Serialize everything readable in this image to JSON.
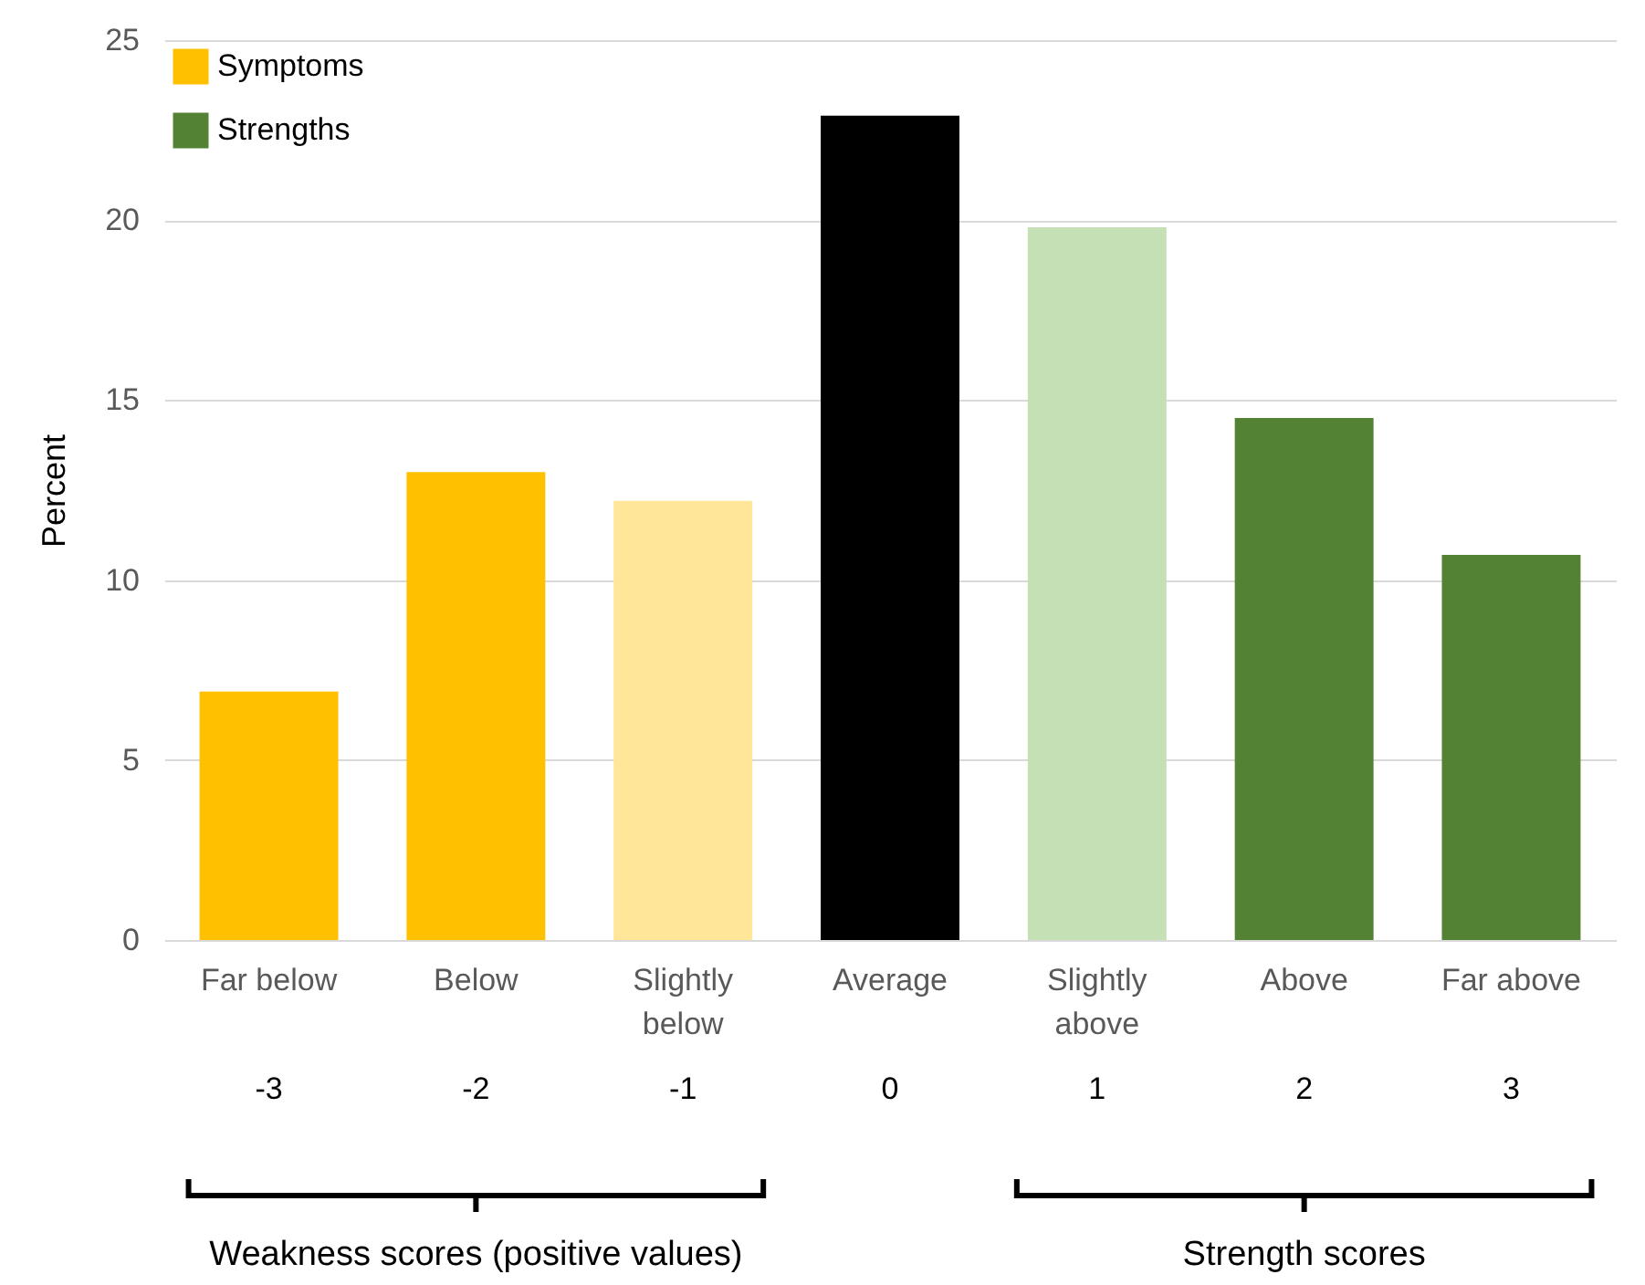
{
  "chart_data": {
    "type": "bar",
    "stacked": true,
    "ylabel": "Percent",
    "categories": [
      "Far below",
      "Below",
      "Slightly below",
      "Average",
      "Slightly above",
      "Above",
      "Far above"
    ],
    "series": [
      {
        "name": "Symptoms",
        "color": "#ffc000",
        "colors": [
          "#ffc000",
          "#ffc000",
          "#ffe699",
          null,
          null,
          null,
          null
        ],
        "values": [
          6.9,
          13.0,
          12.2,
          null,
          null,
          null,
          null
        ]
      },
      {
        "color": "#000000",
        "values": [
          null,
          null,
          null,
          22.9,
          null,
          null,
          null
        ]
      },
      {
        "name": "Strengths",
        "color": "#548235",
        "colors": [
          null,
          null,
          null,
          null,
          "#c5e0b4",
          "#548235",
          "#548235"
        ],
        "values": [
          null,
          null,
          null,
          null,
          19.8,
          14.5,
          10.7
        ]
      }
    ],
    "ylim": [
      0,
      25
    ],
    "yticks": [
      0,
      5,
      10,
      15,
      20,
      25
    ],
    "grid": "y",
    "legend": "top left",
    "annotations": [
      "-3",
      "-2",
      "-1",
      "0",
      "1",
      "2",
      "3",
      "Weakness scores (positive values)",
      "Strength scores"
    ]
  }
}
